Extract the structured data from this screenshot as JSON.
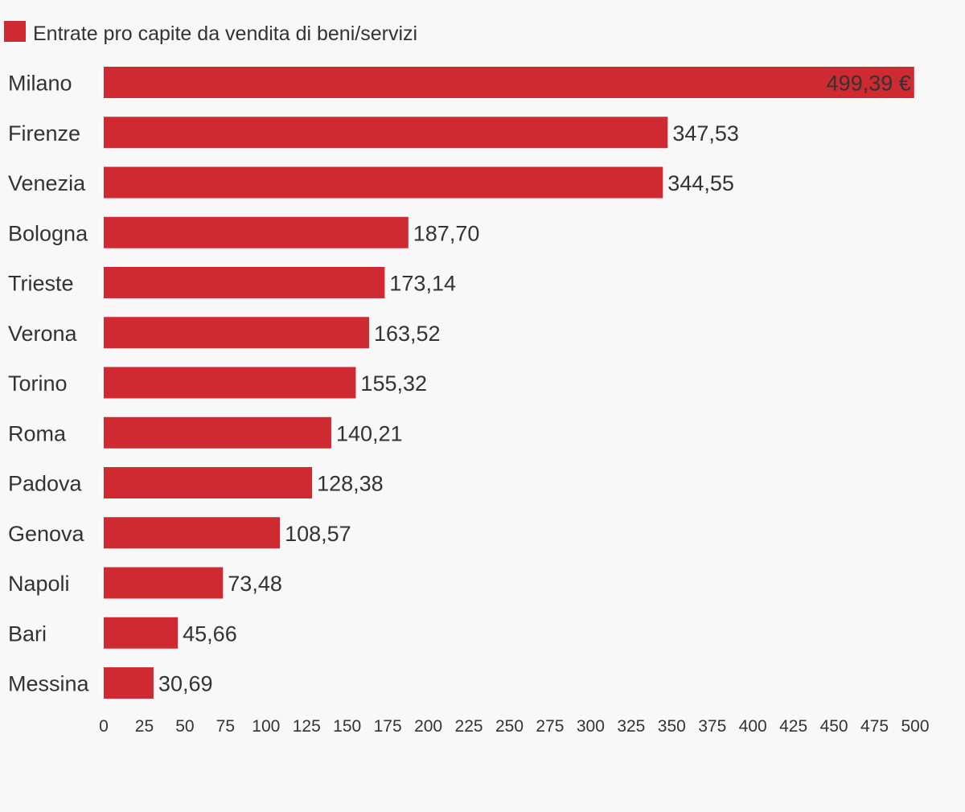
{
  "chart_data": {
    "type": "bar",
    "orientation": "horizontal",
    "series": [
      {
        "name": "Entrate pro capite da vendita di beni/servizi",
        "color": "#cf2a31",
        "values": [
          499.39,
          347.53,
          344.55,
          187.7,
          173.14,
          163.52,
          155.32,
          140.21,
          128.38,
          108.57,
          73.48,
          45.66,
          30.69
        ]
      }
    ],
    "categories": [
      "Milano",
      "Firenze",
      "Venezia",
      "Bologna",
      "Trieste",
      "Verona",
      "Torino",
      "Roma",
      "Padova",
      "Genova",
      "Napoli",
      "Bari",
      "Messina"
    ],
    "value_labels": [
      "499,39 €",
      "347,53",
      "344,55",
      "187,70",
      "173,14",
      "163,52",
      "155,32",
      "140,21",
      "128,38",
      "108,57",
      "73,48",
      "45,66",
      "30,69"
    ],
    "first_label_position": "inside-end",
    "xlim": [
      0,
      500
    ],
    "x_ticks": [
      "0",
      "25",
      "50",
      "75",
      "100",
      "125",
      "150",
      "175",
      "200",
      "225",
      "250",
      "275",
      "300",
      "325",
      "350",
      "375",
      "400",
      "425",
      "450",
      "475",
      "500"
    ],
    "grid": false,
    "legend_position": "top-left"
  }
}
